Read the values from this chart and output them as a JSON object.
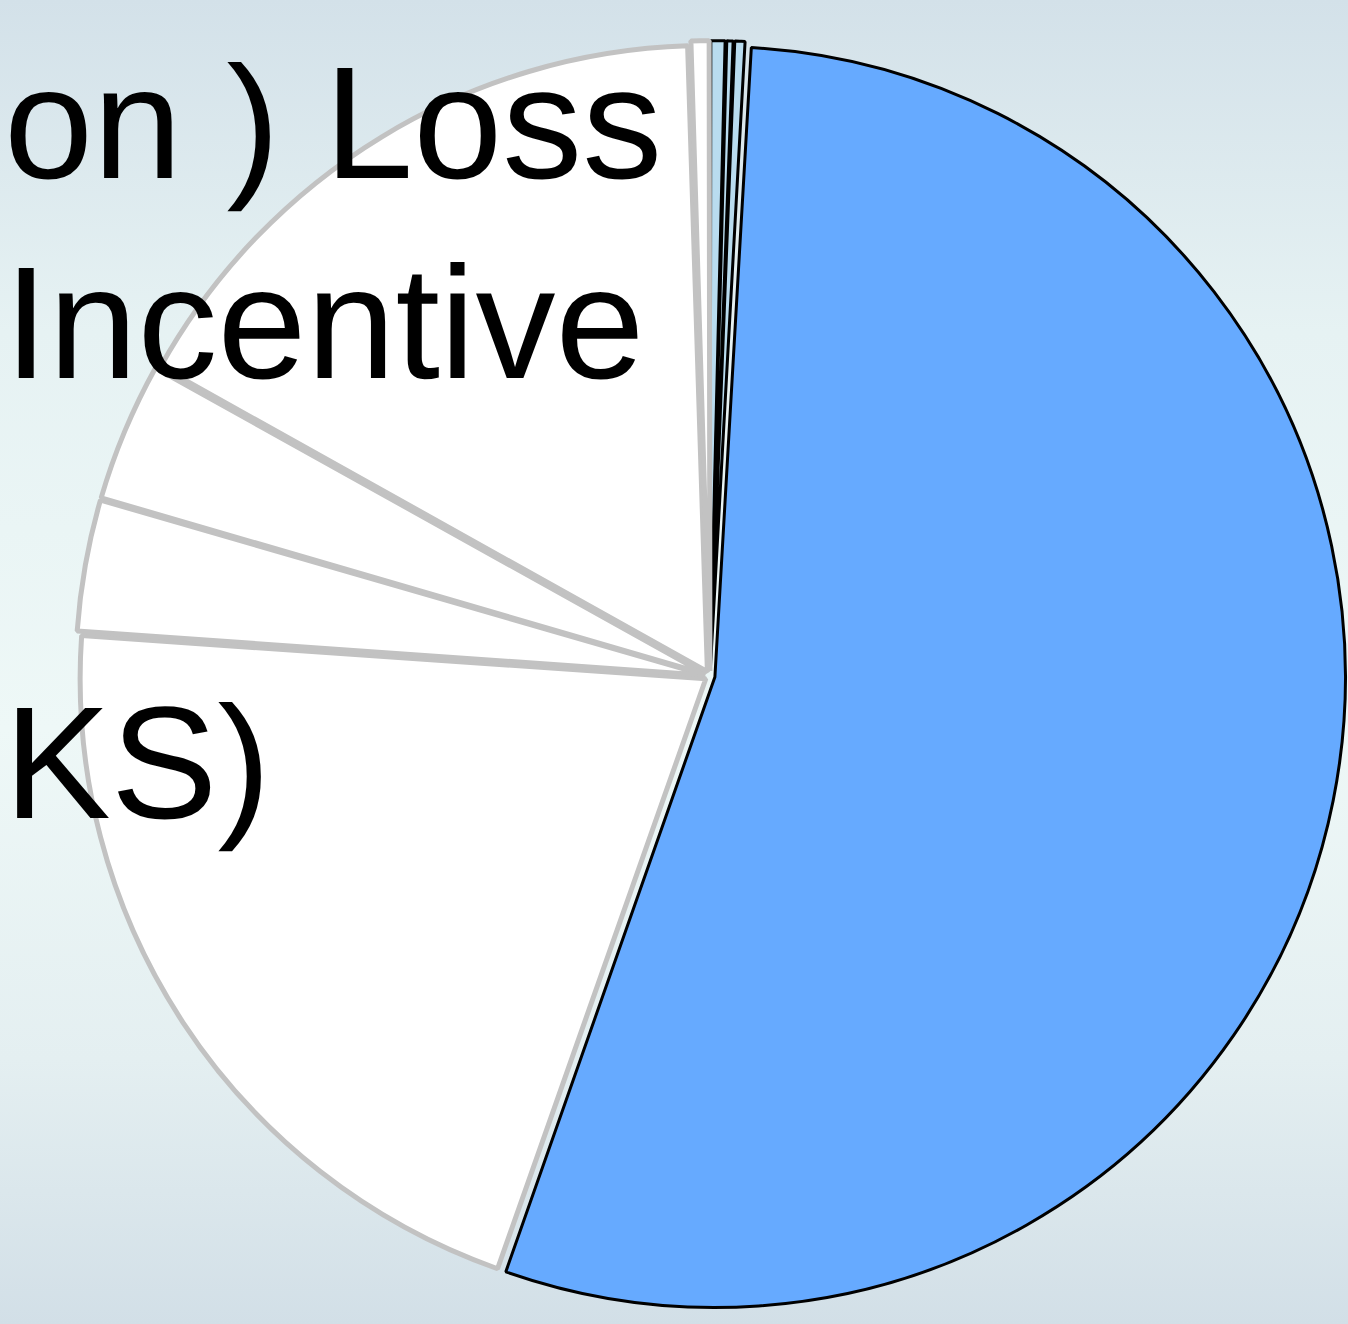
{
  "chart_data": {
    "type": "pie",
    "categories": [
      null,
      null,
      null,
      null,
      null,
      null,
      null,
      null,
      null
    ],
    "values": [
      0.4,
      0.2,
      0.3,
      54.5,
      20.7,
      3.4,
      3.6,
      16.4,
      0.5
    ],
    "colors": [
      "#b9dcef",
      "#b9dcef",
      "#b9dcef",
      "#66aaff",
      "#ffffff",
      "#ffffff",
      "#ffffff",
      "#ffffff",
      "#ffffff"
    ],
    "annotations": [
      "on ) Loss",
      "Incentive",
      "KS)"
    ]
  }
}
